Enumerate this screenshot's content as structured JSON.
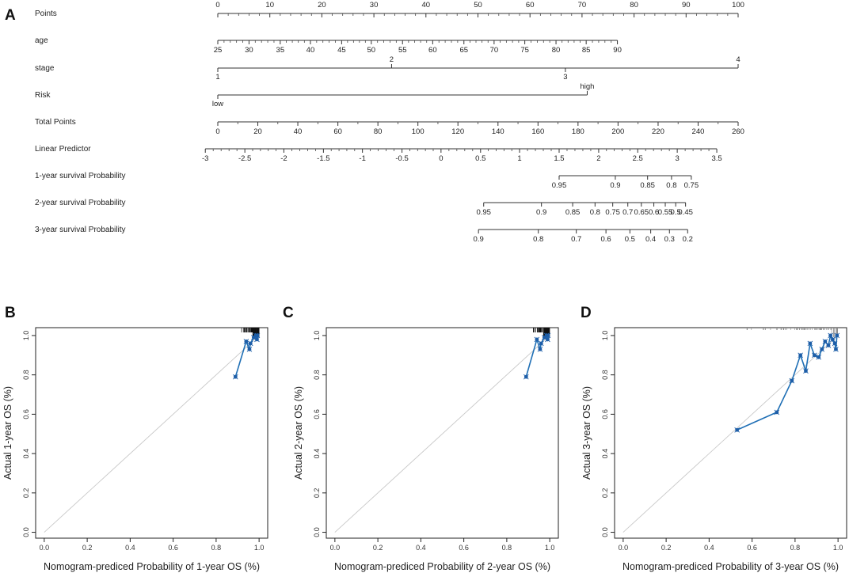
{
  "panels": [
    {
      "letter": "A"
    },
    {
      "letter": "B"
    },
    {
      "letter": "C"
    },
    {
      "letter": "D"
    }
  ],
  "chart_data": [
    {
      "type": "nomogram",
      "title": "",
      "rows": [
        {
          "label": "Points",
          "ticks": [
            {
              "value": 0,
              "label": "0"
            },
            {
              "value": 10,
              "label": "10"
            },
            {
              "value": 20,
              "label": "20"
            },
            {
              "value": 30,
              "label": "30"
            },
            {
              "value": 40,
              "label": "40"
            },
            {
              "value": 50,
              "label": "50"
            },
            {
              "value": 60,
              "label": "60"
            },
            {
              "value": 70,
              "label": "70"
            },
            {
              "value": 80,
              "label": "80"
            },
            {
              "value": 90,
              "label": "90"
            },
            {
              "value": 100,
              "label": "100"
            }
          ]
        },
        {
          "label": "age",
          "ticks": [
            {
              "value": 0,
              "label": "25"
            },
            {
              "value": 6,
              "label": "30"
            },
            {
              "value": 12,
              "label": "35"
            },
            {
              "value": 17.8,
              "label": "40"
            },
            {
              "value": 23.8,
              "label": "45"
            },
            {
              "value": 29.5,
              "label": "50"
            },
            {
              "value": 35.5,
              "label": "55"
            },
            {
              "value": 41.3,
              "label": "60"
            },
            {
              "value": 47.3,
              "label": "65"
            },
            {
              "value": 53.1,
              "label": "70"
            },
            {
              "value": 59,
              "label": "75"
            },
            {
              "value": 65,
              "label": "80"
            },
            {
              "value": 70.8,
              "label": "85"
            },
            {
              "value": 76.8,
              "label": "90"
            }
          ]
        },
        {
          "label": "stage",
          "ticks": [
            {
              "value": 0,
              "label": "1",
              "side": "below"
            },
            {
              "value": 33.4,
              "label": "2",
              "side": "above"
            },
            {
              "value": 66.8,
              "label": "3",
              "side": "below"
            },
            {
              "value": 100,
              "label": "4",
              "side": "above"
            }
          ]
        },
        {
          "label": "Risk",
          "ticks": [
            {
              "value": 0,
              "label": "low",
              "side": "below"
            },
            {
              "value": 71,
              "label": "high",
              "side": "above"
            }
          ]
        },
        {
          "label": "Total Points",
          "ticks": [
            {
              "value": 0,
              "label": "0"
            },
            {
              "value": 7.69,
              "label": "20"
            },
            {
              "value": 15.38,
              "label": "40"
            },
            {
              "value": 23.08,
              "label": "60"
            },
            {
              "value": 30.77,
              "label": "80"
            },
            {
              "value": 38.46,
              "label": "100"
            },
            {
              "value": 46.15,
              "label": "120"
            },
            {
              "value": 53.85,
              "label": "140"
            },
            {
              "value": 61.54,
              "label": "160"
            },
            {
              "value": 69.23,
              "label": "180"
            },
            {
              "value": 76.92,
              "label": "200"
            },
            {
              "value": 84.62,
              "label": "220"
            },
            {
              "value": 92.31,
              "label": "240"
            },
            {
              "value": 100,
              "label": "260"
            }
          ]
        },
        {
          "label": "Linear Predictor",
          "ticks": [
            {
              "value": -2.4,
              "label": "-3"
            },
            {
              "value": 5.2,
              "label": "-2.5"
            },
            {
              "value": 12.7,
              "label": "-2"
            },
            {
              "value": 20.3,
              "label": "-1.5"
            },
            {
              "value": 27.8,
              "label": "-1"
            },
            {
              "value": 35.4,
              "label": "-0.5"
            },
            {
              "value": 42.9,
              "label": "0"
            },
            {
              "value": 50.5,
              "label": "0.5"
            },
            {
              "value": 58,
              "label": "1"
            },
            {
              "value": 65.6,
              "label": "1.5"
            },
            {
              "value": 73.2,
              "label": "2"
            },
            {
              "value": 80.7,
              "label": "2.5"
            },
            {
              "value": 88.3,
              "label": "3"
            },
            {
              "value": 95.9,
              "label": "3.5"
            }
          ]
        },
        {
          "label": "1-year survival Probability",
          "ticks": [
            {
              "value": 65.6,
              "label": "0.95"
            },
            {
              "value": 76.4,
              "label": "0.9"
            },
            {
              "value": 82.6,
              "label": "0.85"
            },
            {
              "value": 87.2,
              "label": "0.8"
            },
            {
              "value": 91,
              "label": "0.75"
            }
          ]
        },
        {
          "label": "2-year survival Probability",
          "ticks": [
            {
              "value": 51.1,
              "label": "0.95"
            },
            {
              "value": 62.2,
              "label": "0.9"
            },
            {
              "value": 68.2,
              "label": "0.85"
            },
            {
              "value": 72.5,
              "label": "0.8"
            },
            {
              "value": 75.9,
              "label": "0.75"
            },
            {
              "value": 78.8,
              "label": "0.7"
            },
            {
              "value": 81.4,
              "label": "0.65"
            },
            {
              "value": 83.8,
              "label": "0.6"
            },
            {
              "value": 86,
              "label": "0.55"
            },
            {
              "value": 88,
              "label": "0.5"
            },
            {
              "value": 89.9,
              "label": "0.45"
            }
          ]
        },
        {
          "label": "3-year survival Probability",
          "ticks": [
            {
              "value": 50.1,
              "label": "0.9"
            },
            {
              "value": 61.6,
              "label": "0.8"
            },
            {
              "value": 68.9,
              "label": "0.7"
            },
            {
              "value": 74.6,
              "label": "0.6"
            },
            {
              "value": 79.2,
              "label": "0.5"
            },
            {
              "value": 83.2,
              "label": "0.4"
            },
            {
              "value": 86.8,
              "label": "0.3"
            },
            {
              "value": 90.3,
              "label": "0.2"
            }
          ]
        }
      ]
    },
    {
      "type": "line",
      "title": "",
      "xlabel": "Nomogram-prediced Probability of 1-year OS (%)",
      "ylabel": "Actual 1-year OS (%)",
      "xlim": [
        -0.04,
        1.04
      ],
      "ylim": [
        -0.03,
        1.04
      ],
      "xticks": [
        0.0,
        0.2,
        0.4,
        0.6,
        0.8,
        1.0
      ],
      "xtick_labels": [
        "0.0",
        "0.2",
        "0.4",
        "0.6",
        "0.8",
        "1.0"
      ],
      "yticks": [
        0.0,
        0.2,
        0.4,
        0.6,
        0.8,
        1.0
      ],
      "ytick_labels": [
        "0.0",
        "0.2",
        "0.4",
        "0.6",
        "0.8",
        "1.0"
      ],
      "series": [
        {
          "x": [
            0.89,
            0.94,
            0.955,
            0.96,
            0.975,
            0.985,
            0.99,
            0.992
          ],
          "y": [
            0.79,
            0.97,
            0.93,
            0.96,
            0.99,
            1.0,
            0.98,
            1.0
          ]
        }
      ],
      "reference_line": true,
      "rug_density": "dense",
      "rug_range": [
        0.9,
        1.0
      ]
    },
    {
      "type": "line",
      "title": "",
      "xlabel": "Nomogram-prediced Probability of 2-year OS (%)",
      "ylabel": "Actual 2-year OS (%)",
      "xlim": [
        -0.04,
        1.04
      ],
      "ylim": [
        -0.03,
        1.04
      ],
      "xticks": [
        0.0,
        0.2,
        0.4,
        0.6,
        0.8,
        1.0
      ],
      "xtick_labels": [
        "0.0",
        "0.2",
        "0.4",
        "0.6",
        "0.8",
        "1.0"
      ],
      "yticks": [
        0.0,
        0.2,
        0.4,
        0.6,
        0.8,
        1.0
      ],
      "ytick_labels": [
        "0.0",
        "0.2",
        "0.4",
        "0.6",
        "0.8",
        "1.0"
      ],
      "series": [
        {
          "x": [
            0.89,
            0.94,
            0.955,
            0.96,
            0.975,
            0.985,
            0.99,
            0.992
          ],
          "y": [
            0.79,
            0.98,
            0.93,
            0.96,
            0.99,
            1.0,
            0.98,
            1.0
          ]
        }
      ],
      "reference_line": true,
      "rug_density": "dense",
      "rug_range": [
        0.9,
        1.0
      ]
    },
    {
      "type": "line",
      "title": "",
      "xlabel": "Nomogram-prediced Probability of 3-year OS (%)",
      "ylabel": "Actual 3-year OS (%)",
      "xlim": [
        -0.04,
        1.04
      ],
      "ylim": [
        -0.03,
        1.04
      ],
      "xticks": [
        0.0,
        0.2,
        0.4,
        0.6,
        0.8,
        1.0
      ],
      "xtick_labels": [
        "0.0",
        "0.2",
        "0.4",
        "0.6",
        "0.8",
        "1.0"
      ],
      "yticks": [
        0.0,
        0.2,
        0.4,
        0.6,
        0.8,
        1.0
      ],
      "ytick_labels": [
        "0.0",
        "0.2",
        "0.4",
        "0.6",
        "0.8",
        "1.0"
      ],
      "series": [
        {
          "x": [
            0.53,
            0.715,
            0.785,
            0.825,
            0.85,
            0.87,
            0.89,
            0.91,
            0.925,
            0.94,
            0.955,
            0.965,
            0.975,
            0.985,
            0.99,
            0.995
          ],
          "y": [
            0.52,
            0.61,
            0.77,
            0.9,
            0.82,
            0.96,
            0.9,
            0.89,
            0.93,
            0.97,
            0.95,
            1.0,
            0.98,
            0.96,
            0.93,
            1.0
          ]
        }
      ],
      "reference_line": true,
      "rug_density": "sparse",
      "rug_range": [
        0.55,
        1.0
      ]
    }
  ]
}
